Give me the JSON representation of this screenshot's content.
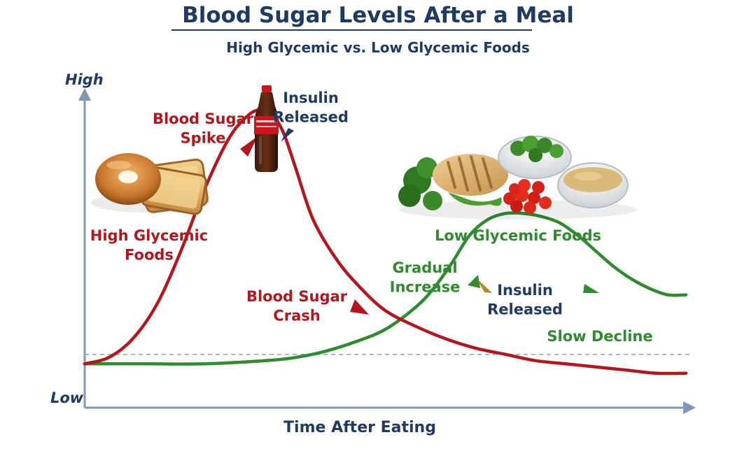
{
  "chart_data": {
    "type": "line",
    "title": "Blood Sugar Levels After a Meal",
    "subtitle": "High Glycemic vs. Low Glycemic Foods",
    "xlabel": "Time After Eating",
    "ylabel_top": "High",
    "ylabel_bottom": "Low",
    "xlim": [
      0,
      100
    ],
    "ylim": [
      0,
      100
    ],
    "baseline": 9,
    "series": [
      {
        "name": "High Glycemic Foods",
        "color": "#b5161e",
        "x": [
          0,
          4,
          8,
          12,
          16,
          20,
          24,
          27,
          29,
          31,
          33,
          35,
          38,
          42,
          46,
          50,
          55,
          60,
          65,
          70,
          75,
          80,
          85,
          90,
          95,
          100
        ],
        "y": [
          14,
          16,
          22,
          33,
          50,
          70,
          86,
          93,
          95,
          94,
          88,
          77,
          60,
          47,
          38,
          31,
          26,
          22,
          19,
          17,
          15,
          14,
          13,
          12,
          11,
          11
        ]
      },
      {
        "name": "Low Glycemic Foods",
        "color": "#2e8b2e",
        "x": [
          0,
          10,
          20,
          30,
          35,
          40,
          45,
          50,
          55,
          58,
          61,
          64,
          67,
          70,
          73,
          76,
          79,
          82,
          85,
          88,
          91,
          94,
          97,
          100
        ],
        "y": [
          14,
          14,
          14,
          15,
          16,
          18,
          21,
          25,
          32,
          38,
          46,
          55,
          60,
          62,
          62,
          61,
          59,
          55,
          50,
          45,
          41,
          38,
          36,
          36
        ]
      }
    ],
    "annotations": {
      "spike": "Blood Sugar\nSpike",
      "insulin_high": "Insulin\nReleased",
      "high_foods": "High Glycemic\nFoods",
      "crash": "Blood Sugar\nCrash",
      "low_foods": "Low Glycemic Foods",
      "gradual": "Gradual\nIncrease",
      "insulin_low": "Insulin\nReleased",
      "slow_decline": "Slow Decline"
    },
    "grid": false
  },
  "colors": {
    "axis": "#7f97b4",
    "title": "#1f3b63",
    "high": "#b5161e",
    "low": "#2e8b2e"
  }
}
